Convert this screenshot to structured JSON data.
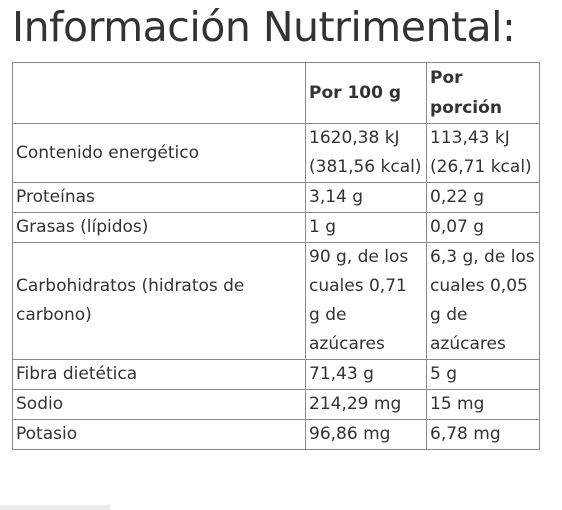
{
  "title": "Información Nutrimental:",
  "table": {
    "headers": [
      "",
      "Por 100 g",
      "Por porción"
    ],
    "rows": [
      {
        "label": "Contenido energético",
        "per100": "1620,38 kJ (381,56 kcal)",
        "perServing": "113,43 kJ (26,71 kcal)"
      },
      {
        "label": "Proteínas",
        "per100": "3,14 g",
        "perServing": "0,22 g"
      },
      {
        "label": "Grasas (lípidos)",
        "per100": "1 g",
        "perServing": "0,07 g"
      },
      {
        "label": "Carbohidratos (hidratos de carbono)",
        "per100": "90 g, de los cuales 0,71 g de azúcares",
        "perServing": "6,3 g, de los cuales 0,05 g de azúcares"
      },
      {
        "label": "Fibra dietética",
        "per100": "71,43 g",
        "perServing": "5 g"
      },
      {
        "label": "Sodio",
        "per100": "214,29 mg",
        "perServing": "15 mg"
      },
      {
        "label": "Potasio",
        "per100": "96,86 mg",
        "perServing": "6,78 mg"
      }
    ]
  }
}
